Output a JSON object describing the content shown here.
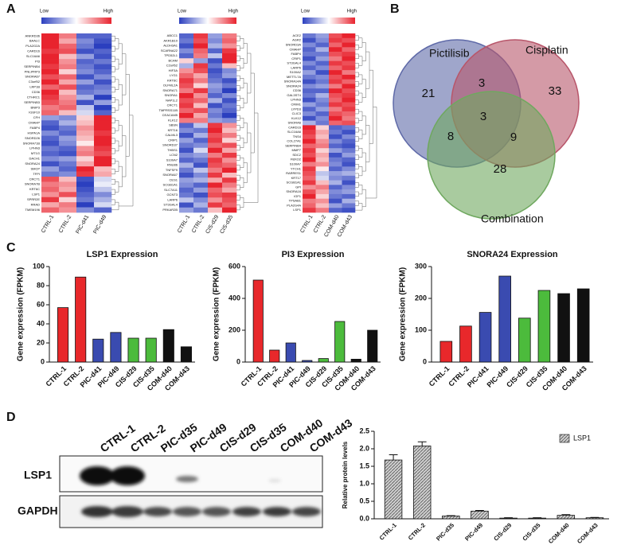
{
  "panel_labels": [
    "A",
    "B",
    "C",
    "D"
  ],
  "chart_data": [
    {
      "type": "heatmap",
      "legend_labels": [
        "Low",
        "High"
      ],
      "vlim": [
        -1,
        1
      ],
      "columns": [
        "CTRL-1",
        "CTRL-2",
        "PIC-d41",
        "PIC-d49"
      ],
      "rows": [
        "ANKRD36",
        "BAALC",
        "PLA2G2A",
        "CARD16",
        "SLC16A6",
        "PI3",
        "SERPINB4",
        "PNLIPRP3",
        "SNORA67",
        "C3orf52",
        "LRP1B",
        "CD36",
        "CTHRC1",
        "SERPINB3",
        "BNIP3",
        "IGSF10",
        "CFH",
        "CMAHP",
        "FABP4",
        "HSPA1A",
        "SNORD26",
        "SNORA71B",
        "LPHN3",
        "MT1G",
        "DACH1",
        "SNORA24",
        "SMCP",
        "TFPI",
        "CRCT1",
        "SNORA7B",
        "KRT6C",
        "LSP1",
        "SPRR2E",
        "RRAD",
        "TMEM196"
      ],
      "values": [
        [
          1,
          0.6,
          -0.8,
          -0.8
        ],
        [
          1,
          0.4,
          -0.6,
          -0.9
        ],
        [
          1,
          0.7,
          -0.7,
          -1
        ],
        [
          0.9,
          0.8,
          -0.9,
          -0.8
        ],
        [
          1,
          0.3,
          -0.5,
          -0.9
        ],
        [
          1,
          0.5,
          -0.8,
          -0.7
        ],
        [
          0.9,
          0.6,
          -0.7,
          -0.9
        ],
        [
          1,
          0.2,
          -0.6,
          -0.8
        ],
        [
          0.8,
          0.7,
          -0.9,
          -0.6
        ],
        [
          1,
          0.4,
          -0.5,
          -0.9
        ],
        [
          0.7,
          0.8,
          -0.8,
          -0.7
        ],
        [
          1,
          0.3,
          -0.7,
          -0.6
        ],
        [
          0.9,
          0.5,
          -0.4,
          -1
        ],
        [
          0.8,
          0.6,
          -0.9,
          -0.5
        ],
        [
          0.6,
          0.7,
          -0.3,
          -1
        ],
        [
          0.7,
          0.3,
          -0.2,
          -0.8
        ],
        [
          -0.5,
          -0.6,
          0.2,
          1
        ],
        [
          -0.8,
          -0.4,
          0.3,
          1
        ],
        [
          -0.9,
          -0.7,
          0.5,
          1
        ],
        [
          -0.6,
          -0.8,
          0.4,
          0.9
        ],
        [
          -0.8,
          -0.5,
          0.3,
          1
        ],
        [
          -0.9,
          -0.6,
          0.1,
          1
        ],
        [
          -0.7,
          -0.8,
          0.5,
          0.9
        ],
        [
          -0.8,
          -0.9,
          0.6,
          0.8
        ],
        [
          -0.6,
          -0.5,
          0.2,
          1
        ],
        [
          -0.9,
          -0.7,
          0.4,
          1
        ],
        [
          -0.5,
          -0.8,
          1,
          0.3
        ],
        [
          -0.7,
          -0.6,
          0.9,
          0.4
        ],
        [
          0.8,
          0.3,
          -0.9,
          -0.2
        ],
        [
          0.6,
          0.5,
          -1,
          -0.1
        ],
        [
          0.7,
          0.4,
          -0.9,
          -0.3
        ],
        [
          0.5,
          0.8,
          -0.8,
          -0.6
        ],
        [
          0.9,
          0.2,
          -0.7,
          -0.4
        ],
        [
          0.4,
          0.6,
          -1,
          -0.2
        ],
        [
          0.7,
          0.5,
          -0.6,
          -0.8
        ]
      ]
    },
    {
      "type": "heatmap",
      "legend_labels": [
        "Low",
        "High"
      ],
      "vlim": [
        -1,
        1
      ],
      "columns": [
        "CTRL-1",
        "CTRL-2",
        "CIS-d29",
        "CIS-d35"
      ],
      "rows": [
        "ABCC1",
        "AKR1B10",
        "ALDH3A1",
        "SCARNA22",
        "TPD52L1",
        "BCAM",
        "C2orf62",
        "HIF3A",
        "LYG1",
        "KRT6C",
        "OLFML2A",
        "SNORA71",
        "SNORA1",
        "NAP1L2",
        "CRCT1",
        "TMPRSS11B",
        "CEACAM5",
        "KLK12",
        "SBSN",
        "KRT16",
        "CALML3",
        "CRIP1",
        "SNORD37",
        "THBS1",
        "LCN2",
        "S100A7",
        "RNU86",
        "TNFSF9",
        "SNORA67",
        "CES1",
        "SCGB1A1",
        "SLC7A11",
        "GCNT3",
        "LARP6",
        "ST3GAL4",
        "PRKAR2B"
      ],
      "values": [
        [
          -0.8,
          0.9,
          -0.5,
          0.6
        ],
        [
          -0.7,
          0.8,
          -0.6,
          0.7
        ],
        [
          -0.9,
          1,
          -0.4,
          0.5
        ],
        [
          -0.6,
          0.7,
          -0.8,
          0.9
        ],
        [
          -0.8,
          0.6,
          -0.3,
          1
        ],
        [
          0.2,
          -0.5,
          -0.9,
          1
        ],
        [
          -0.4,
          0.9,
          -0.7,
          0.3
        ],
        [
          0.5,
          0.8,
          -0.9,
          -0.6
        ],
        [
          0.7,
          0.4,
          -0.8,
          -0.5
        ],
        [
          0.9,
          0.6,
          -0.7,
          -0.9
        ],
        [
          0.8,
          0.2,
          -0.5,
          -0.7
        ],
        [
          0.6,
          0.9,
          -0.6,
          -1
        ],
        [
          1,
          0.5,
          -0.8,
          -0.6
        ],
        [
          0.8,
          0.7,
          -0.4,
          -0.9
        ],
        [
          0.9,
          0.3,
          -0.9,
          -0.7
        ],
        [
          0.7,
          0.8,
          -0.6,
          -0.8
        ],
        [
          1,
          0.4,
          -0.7,
          -1
        ],
        [
          0.6,
          0.6,
          -0.5,
          -0.6
        ],
        [
          -0.8,
          -0.3,
          0.9,
          0.5
        ],
        [
          -0.6,
          -0.7,
          1,
          0.3
        ],
        [
          -0.9,
          -0.4,
          0.8,
          0.6
        ],
        [
          -0.5,
          -0.8,
          0.9,
          0.2
        ],
        [
          -0.7,
          -0.6,
          0.7,
          0.8
        ],
        [
          -0.9,
          -0.2,
          1,
          0.4
        ],
        [
          -0.6,
          -0.5,
          0.6,
          0.9
        ],
        [
          -0.8,
          -0.7,
          0.9,
          0.5
        ],
        [
          -0.4,
          -0.9,
          0.8,
          0.7
        ],
        [
          -0.7,
          -0.3,
          0.6,
          1
        ],
        [
          -0.9,
          -0.6,
          0.9,
          0.3
        ],
        [
          -0.5,
          -0.4,
          0.4,
          0.9
        ],
        [
          -0.6,
          -0.8,
          1,
          0.6
        ],
        [
          -0.8,
          -0.5,
          0.7,
          0.4
        ],
        [
          -0.7,
          -0.9,
          0.8,
          0.9
        ],
        [
          -0.3,
          -0.6,
          0.5,
          0.8
        ],
        [
          -0.9,
          -0.4,
          0.9,
          0.7
        ],
        [
          -0.5,
          -0.7,
          0.3,
          1
        ]
      ]
    },
    {
      "type": "heatmap",
      "legend_labels": [
        "Low",
        "High"
      ],
      "vlim": [
        -1,
        1
      ],
      "columns": [
        "CTRL-1",
        "CTRL-2",
        "COM-d40",
        "COM-d43"
      ],
      "rows": [
        "ACE2",
        "AGR2",
        "SNORD3A",
        "CMAHP",
        "FABP4",
        "CRIP1",
        "ST3GAL4",
        "LARP6",
        "S100A2",
        "METTL7A",
        "SNORA14A",
        "SNORA24",
        "CD36",
        "GAL3ST4",
        "LPHN3",
        "CRIM1",
        "LYPD3",
        "CLIC3",
        "KLK12",
        "SNORA6",
        "CARD16",
        "SLC16A6",
        "TNS4",
        "COL27A1",
        "SERPINB4",
        "MMP7",
        "SDC2",
        "FBXO2",
        "S100A7",
        "YTCH1",
        "RARRES1",
        "KRT17",
        "SCGB1A1",
        "GPI",
        "SNORA16",
        "IGF1",
        "TPSAB1",
        "PLA2G4A",
        "LSP1"
      ],
      "values": [
        [
          -0.7,
          -0.5,
          0.8,
          1
        ],
        [
          -0.9,
          -0.6,
          0.9,
          0.8
        ],
        [
          -0.6,
          -0.8,
          0.7,
          1
        ],
        [
          -0.8,
          -0.4,
          1,
          0.7
        ],
        [
          -0.7,
          -0.7,
          0.8,
          0.9
        ],
        [
          -0.9,
          -0.5,
          0.6,
          1
        ],
        [
          -0.6,
          -0.8,
          0.9,
          0.8
        ],
        [
          -0.8,
          -0.6,
          0.7,
          0.9
        ],
        [
          -0.5,
          -0.9,
          1,
          0.6
        ],
        [
          -0.7,
          -0.6,
          0.8,
          1
        ],
        [
          -0.9,
          -0.7,
          0.9,
          0.7
        ],
        [
          -0.6,
          -0.5,
          0.6,
          1
        ],
        [
          -0.8,
          -0.8,
          1,
          0.8
        ],
        [
          -0.7,
          -0.4,
          0.8,
          0.9
        ],
        [
          -0.9,
          -0.6,
          0.7,
          1
        ],
        [
          -0.5,
          -0.7,
          0.9,
          0.8
        ],
        [
          -0.8,
          -0.5,
          0.6,
          0.9
        ],
        [
          -0.6,
          -0.8,
          0.8,
          0.7
        ],
        [
          -0.9,
          -0.6,
          1,
          0.6
        ],
        [
          -0.4,
          -0.7,
          0.7,
          0.8
        ],
        [
          1,
          0.2,
          -0.8,
          -0.7
        ],
        [
          0.9,
          0.4,
          -0.7,
          -0.9
        ],
        [
          0.8,
          0.3,
          -0.9,
          -0.6
        ],
        [
          1,
          0.5,
          -0.6,
          -0.8
        ],
        [
          0.7,
          0.6,
          -0.8,
          -0.9
        ],
        [
          0.9,
          0.2,
          -0.5,
          -0.7
        ],
        [
          0.8,
          0.4,
          -0.9,
          -0.5
        ],
        [
          1,
          0.3,
          -0.7,
          -0.8
        ],
        [
          0.6,
          0.5,
          -0.6,
          -0.9
        ],
        [
          0.9,
          0.1,
          -0.8,
          -0.6
        ],
        [
          0.8,
          -0.3,
          -0.5,
          -0.4
        ],
        [
          0.7,
          -0.2,
          -0.6,
          -0.7
        ],
        [
          0.9,
          0.3,
          -0.4,
          -0.9
        ],
        [
          0.5,
          0.6,
          -0.8,
          -0.6
        ],
        [
          0.8,
          0.4,
          -0.6,
          -0.5
        ],
        [
          1,
          0.2,
          -0.7,
          -0.8
        ],
        [
          0.6,
          0.5,
          -0.9,
          -0.4
        ],
        [
          0.7,
          0.3,
          -0.5,
          -0.7
        ],
        [
          0.9,
          0.6,
          -0.8,
          -0.9
        ]
      ]
    },
    {
      "type": "venn",
      "sets": [
        "Pictilisib",
        "Cisplatin",
        "Combination"
      ],
      "colors": [
        "#5f6aa8",
        "#b8566a",
        "#6fa85f"
      ],
      "regions": [
        21,
        33,
        28,
        3,
        8,
        9,
        3
      ]
    },
    {
      "type": "bar",
      "title": "LSP1 Expression",
      "ylabel": "Gene expression (FPKM)",
      "categories": [
        "CTRL-1",
        "CTRL-2",
        "PIC-d41",
        "PIC-d49",
        "CIS-d29",
        "CIS-d35",
        "COM-d40",
        "COM-d43"
      ],
      "values": [
        57,
        89,
        24,
        31,
        25,
        25,
        34,
        16
      ],
      "colors": [
        "#e8282b",
        "#e8282b",
        "#3a4bb0",
        "#3a4bb0",
        "#4cbb3c",
        "#4cbb3c",
        "#111111",
        "#111111"
      ],
      "ylim": [
        0,
        100
      ],
      "yticks": [
        0,
        20,
        40,
        60,
        80,
        100
      ]
    },
    {
      "type": "bar",
      "title": "PI3 Expression",
      "ylabel": "Gene expression (FPKM)",
      "categories": [
        "CTRL-1",
        "CTRL-2",
        "PIC-d41",
        "PIC-d49",
        "CIS-d29",
        "CIS-d35",
        "COM-d40",
        "COM-d43"
      ],
      "values": [
        515,
        75,
        120,
        10,
        22,
        255,
        18,
        200
      ],
      "colors": [
        "#e8282b",
        "#e8282b",
        "#3a4bb0",
        "#3a4bb0",
        "#4cbb3c",
        "#4cbb3c",
        "#111111",
        "#111111"
      ],
      "ylim": [
        0,
        600
      ],
      "yticks": [
        0,
        200,
        400,
        600
      ]
    },
    {
      "type": "bar",
      "title": "SNORA24 Expression",
      "ylabel": "Gene expression (FPKM)",
      "categories": [
        "CTRL-1",
        "CTRL-2",
        "PIC-d41",
        "PIC-d49",
        "CIS-d29",
        "CIS-d35",
        "COM-d40",
        "COM-d43"
      ],
      "values": [
        65,
        113,
        156,
        270,
        138,
        225,
        215,
        230
      ],
      "colors": [
        "#e8282b",
        "#e8282b",
        "#3a4bb0",
        "#3a4bb0",
        "#4cbb3c",
        "#4cbb3c",
        "#111111",
        "#111111"
      ],
      "ylim": [
        0,
        300
      ],
      "yticks": [
        0,
        100,
        200,
        300
      ]
    },
    {
      "type": "bar",
      "ylabel": "Relative protein levels",
      "categories": [
        "CTRL-1",
        "CTRL-2",
        "PIC-d35",
        "PIC-d49",
        "CIS-d29",
        "CIS-d35",
        "COM-d40",
        "COM-d43"
      ],
      "series": [
        {
          "name": "LSP1",
          "values": [
            1.68,
            2.08,
            0.08,
            0.22,
            0.02,
            0.02,
            0.1,
            0.03
          ],
          "errors": [
            0.15,
            0.12,
            0.01,
            0.02,
            0.01,
            0.01,
            0.02,
            0.01
          ]
        }
      ],
      "ylim": [
        0,
        2.5
      ],
      "yticks": [
        {
          "value": 0,
          "label": "0.0"
        },
        0.5,
        {
          "value": 1,
          "label": "1.0"
        },
        1.5,
        {
          "value": 2,
          "label": "2.0"
        },
        2.5
      ]
    }
  ],
  "blot": {
    "lanes": [
      "CTRL-1",
      "CTRL-2",
      "PIC-d35",
      "PIC-d49",
      "CIS-d29",
      "CIS-d35",
      "COM-d40",
      "COM-d43"
    ],
    "rows": [
      "LSP1",
      "GAPDH"
    ]
  }
}
